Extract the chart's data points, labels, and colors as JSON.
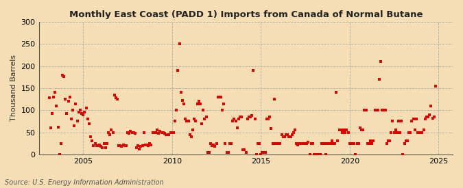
{
  "title": "Monthly East Coast (PADD 1) Imports from Canada of Normal Butane",
  "ylabel": "Thousand Barrels",
  "source": "Source: U.S. Energy Information Administration",
  "background_color": "#f5deb3",
  "plot_bg_color": "#f5deb3",
  "marker_color": "#dd0000",
  "marker_size": 5,
  "ylim": [
    0,
    300
  ],
  "yticks": [
    0,
    50,
    100,
    150,
    200,
    250,
    300
  ],
  "xlim_start": 2002.5,
  "xlim_end": 2025.8,
  "xticks": [
    2005,
    2010,
    2015,
    2020,
    2025
  ],
  "data": [
    [
      2003.08,
      128
    ],
    [
      2003.17,
      60
    ],
    [
      2003.25,
      92
    ],
    [
      2003.33,
      130
    ],
    [
      2003.42,
      140
    ],
    [
      2003.5,
      110
    ],
    [
      2003.58,
      62
    ],
    [
      2003.67,
      0
    ],
    [
      2003.75,
      25
    ],
    [
      2003.83,
      180
    ],
    [
      2003.92,
      176
    ],
    [
      2004.0,
      125
    ],
    [
      2004.08,
      93
    ],
    [
      2004.17,
      120
    ],
    [
      2004.25,
      130
    ],
    [
      2004.33,
      80
    ],
    [
      2004.42,
      100
    ],
    [
      2004.5,
      65
    ],
    [
      2004.58,
      115
    ],
    [
      2004.67,
      75
    ],
    [
      2004.75,
      95
    ],
    [
      2004.83,
      100
    ],
    [
      2004.92,
      92
    ],
    [
      2005.0,
      90
    ],
    [
      2005.08,
      95
    ],
    [
      2005.17,
      105
    ],
    [
      2005.25,
      80
    ],
    [
      2005.33,
      70
    ],
    [
      2005.42,
      40
    ],
    [
      2005.5,
      30
    ],
    [
      2005.58,
      20
    ],
    [
      2005.67,
      25
    ],
    [
      2005.75,
      20
    ],
    [
      2005.83,
      20
    ],
    [
      2005.92,
      22
    ],
    [
      2006.0,
      18
    ],
    [
      2006.08,
      15
    ],
    [
      2006.17,
      25
    ],
    [
      2006.25,
      15
    ],
    [
      2006.33,
      25
    ],
    [
      2006.42,
      50
    ],
    [
      2006.5,
      45
    ],
    [
      2006.58,
      55
    ],
    [
      2006.67,
      50
    ],
    [
      2006.75,
      135
    ],
    [
      2006.83,
      128
    ],
    [
      2006.92,
      125
    ],
    [
      2007.0,
      20
    ],
    [
      2007.08,
      20
    ],
    [
      2007.17,
      18
    ],
    [
      2007.25,
      22
    ],
    [
      2007.33,
      20
    ],
    [
      2007.42,
      20
    ],
    [
      2007.5,
      50
    ],
    [
      2007.58,
      48
    ],
    [
      2007.67,
      52
    ],
    [
      2007.75,
      50
    ],
    [
      2007.83,
      50
    ],
    [
      2007.92,
      48
    ],
    [
      2008.0,
      15
    ],
    [
      2008.08,
      20
    ],
    [
      2008.17,
      12
    ],
    [
      2008.25,
      18
    ],
    [
      2008.33,
      20
    ],
    [
      2008.42,
      50
    ],
    [
      2008.5,
      22
    ],
    [
      2008.58,
      22
    ],
    [
      2008.67,
      20
    ],
    [
      2008.75,
      25
    ],
    [
      2008.83,
      22
    ],
    [
      2008.92,
      50
    ],
    [
      2009.0,
      50
    ],
    [
      2009.08,
      50
    ],
    [
      2009.17,
      55
    ],
    [
      2009.25,
      48
    ],
    [
      2009.33,
      52
    ],
    [
      2009.42,
      50
    ],
    [
      2009.5,
      50
    ],
    [
      2009.58,
      48
    ],
    [
      2009.67,
      45
    ],
    [
      2009.75,
      45
    ],
    [
      2009.83,
      45
    ],
    [
      2009.92,
      50
    ],
    [
      2010.0,
      50
    ],
    [
      2010.08,
      50
    ],
    [
      2010.17,
      75
    ],
    [
      2010.25,
      100
    ],
    [
      2010.33,
      190
    ],
    [
      2010.42,
      250
    ],
    [
      2010.5,
      140
    ],
    [
      2010.58,
      122
    ],
    [
      2010.67,
      115
    ],
    [
      2010.75,
      80
    ],
    [
      2010.83,
      75
    ],
    [
      2010.92,
      75
    ],
    [
      2011.0,
      45
    ],
    [
      2011.08,
      40
    ],
    [
      2011.17,
      55
    ],
    [
      2011.25,
      80
    ],
    [
      2011.33,
      75
    ],
    [
      2011.42,
      115
    ],
    [
      2011.5,
      120
    ],
    [
      2011.58,
      115
    ],
    [
      2011.67,
      70
    ],
    [
      2011.75,
      100
    ],
    [
      2011.83,
      80
    ],
    [
      2011.92,
      85
    ],
    [
      2012.0,
      5
    ],
    [
      2012.08,
      5
    ],
    [
      2012.17,
      25
    ],
    [
      2012.25,
      20
    ],
    [
      2012.33,
      22
    ],
    [
      2012.42,
      18
    ],
    [
      2012.5,
      25
    ],
    [
      2012.58,
      130
    ],
    [
      2012.67,
      130
    ],
    [
      2012.75,
      130
    ],
    [
      2012.83,
      100
    ],
    [
      2012.92,
      115
    ],
    [
      2013.0,
      25
    ],
    [
      2013.08,
      5
    ],
    [
      2013.17,
      5
    ],
    [
      2013.25,
      25
    ],
    [
      2013.33,
      25
    ],
    [
      2013.42,
      75
    ],
    [
      2013.5,
      80
    ],
    [
      2013.58,
      75
    ],
    [
      2013.67,
      60
    ],
    [
      2013.75,
      80
    ],
    [
      2013.83,
      85
    ],
    [
      2013.92,
      85
    ],
    [
      2014.0,
      10
    ],
    [
      2014.08,
      10
    ],
    [
      2014.17,
      5
    ],
    [
      2014.25,
      80
    ],
    [
      2014.33,
      85
    ],
    [
      2014.42,
      85
    ],
    [
      2014.5,
      88
    ],
    [
      2014.58,
      190
    ],
    [
      2014.67,
      80
    ],
    [
      2014.75,
      0
    ],
    [
      2014.83,
      25
    ],
    [
      2014.92,
      25
    ],
    [
      2015.0,
      0
    ],
    [
      2015.08,
      5
    ],
    [
      2015.17,
      5
    ],
    [
      2015.25,
      5
    ],
    [
      2015.33,
      80
    ],
    [
      2015.42,
      80
    ],
    [
      2015.5,
      85
    ],
    [
      2015.58,
      58
    ],
    [
      2015.67,
      25
    ],
    [
      2015.75,
      125
    ],
    [
      2015.83,
      25
    ],
    [
      2015.92,
      25
    ],
    [
      2016.0,
      25
    ],
    [
      2016.08,
      25
    ],
    [
      2016.17,
      45
    ],
    [
      2016.25,
      40
    ],
    [
      2016.33,
      40
    ],
    [
      2016.42,
      45
    ],
    [
      2016.5,
      45
    ],
    [
      2016.58,
      40
    ],
    [
      2016.67,
      40
    ],
    [
      2016.75,
      45
    ],
    [
      2016.83,
      50
    ],
    [
      2016.92,
      55
    ],
    [
      2017.0,
      25
    ],
    [
      2017.08,
      22
    ],
    [
      2017.17,
      25
    ],
    [
      2017.25,
      25
    ],
    [
      2017.33,
      25
    ],
    [
      2017.42,
      25
    ],
    [
      2017.5,
      25
    ],
    [
      2017.58,
      25
    ],
    [
      2017.67,
      28
    ],
    [
      2017.75,
      0
    ],
    [
      2017.83,
      25
    ],
    [
      2017.92,
      25
    ],
    [
      2018.0,
      0
    ],
    [
      2018.08,
      0
    ],
    [
      2018.17,
      0
    ],
    [
      2018.25,
      0
    ],
    [
      2018.33,
      0
    ],
    [
      2018.42,
      25
    ],
    [
      2018.5,
      25
    ],
    [
      2018.58,
      25
    ],
    [
      2018.67,
      0
    ],
    [
      2018.75,
      25
    ],
    [
      2018.83,
      25
    ],
    [
      2018.92,
      25
    ],
    [
      2019.0,
      30
    ],
    [
      2019.08,
      25
    ],
    [
      2019.17,
      25
    ],
    [
      2019.25,
      140
    ],
    [
      2019.33,
      30
    ],
    [
      2019.42,
      55
    ],
    [
      2019.5,
      55
    ],
    [
      2019.58,
      50
    ],
    [
      2019.67,
      55
    ],
    [
      2019.75,
      50
    ],
    [
      2019.83,
      55
    ],
    [
      2019.92,
      50
    ],
    [
      2020.0,
      25
    ],
    [
      2020.08,
      25
    ],
    [
      2020.17,
      25
    ],
    [
      2020.25,
      25
    ],
    [
      2020.33,
      0
    ],
    [
      2020.42,
      25
    ],
    [
      2020.5,
      25
    ],
    [
      2020.58,
      60
    ],
    [
      2020.67,
      55
    ],
    [
      2020.75,
      55
    ],
    [
      2020.83,
      100
    ],
    [
      2020.92,
      100
    ],
    [
      2021.0,
      25
    ],
    [
      2021.08,
      25
    ],
    [
      2021.17,
      30
    ],
    [
      2021.25,
      25
    ],
    [
      2021.33,
      30
    ],
    [
      2021.42,
      100
    ],
    [
      2021.5,
      100
    ],
    [
      2021.58,
      100
    ],
    [
      2021.67,
      170
    ],
    [
      2021.75,
      210
    ],
    [
      2021.83,
      100
    ],
    [
      2021.92,
      100
    ],
    [
      2022.0,
      100
    ],
    [
      2022.08,
      25
    ],
    [
      2022.17,
      30
    ],
    [
      2022.25,
      30
    ],
    [
      2022.33,
      50
    ],
    [
      2022.42,
      75
    ],
    [
      2022.5,
      50
    ],
    [
      2022.58,
      55
    ],
    [
      2022.67,
      50
    ],
    [
      2022.75,
      75
    ],
    [
      2022.83,
      50
    ],
    [
      2022.92,
      75
    ],
    [
      2023.0,
      0
    ],
    [
      2023.08,
      25
    ],
    [
      2023.17,
      30
    ],
    [
      2023.25,
      30
    ],
    [
      2023.33,
      50
    ],
    [
      2023.42,
      50
    ],
    [
      2023.5,
      75
    ],
    [
      2023.58,
      80
    ],
    [
      2023.67,
      55
    ],
    [
      2023.75,
      80
    ],
    [
      2023.83,
      50
    ],
    [
      2023.92,
      50
    ],
    [
      2024.0,
      50
    ],
    [
      2024.08,
      50
    ],
    [
      2024.17,
      55
    ],
    [
      2024.25,
      80
    ],
    [
      2024.33,
      85
    ],
    [
      2024.42,
      85
    ],
    [
      2024.5,
      90
    ],
    [
      2024.58,
      110
    ],
    [
      2024.67,
      82
    ],
    [
      2024.75,
      85
    ],
    [
      2024.83,
      155
    ]
  ]
}
